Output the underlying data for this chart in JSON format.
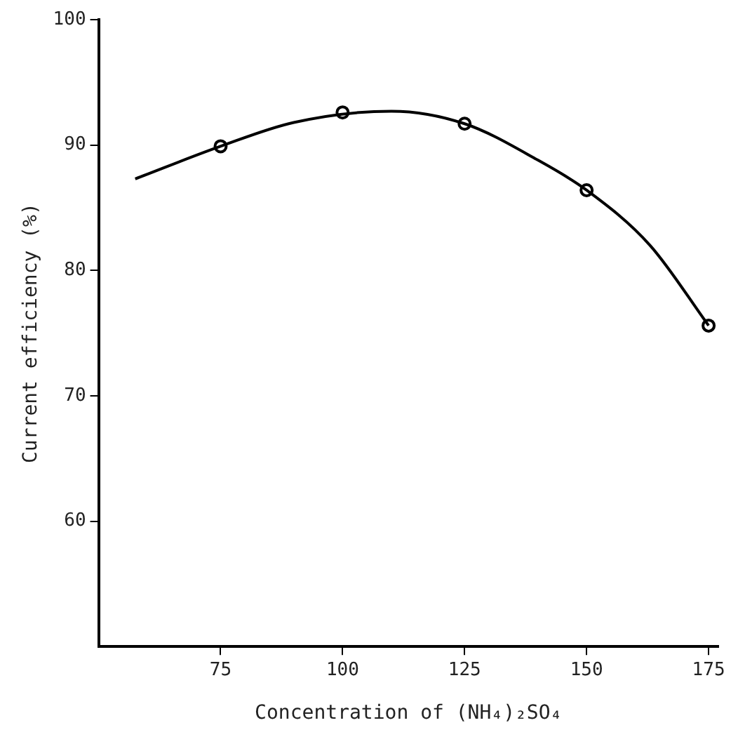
{
  "chart_data": {
    "type": "line",
    "xlabel": "Concentration of (NH₄)₂SO₄",
    "ylabel": "Current efficiency (%)",
    "xlim": [
      50,
      177
    ],
    "xticks": [
      75,
      100,
      125,
      150,
      175
    ],
    "ylim": [
      50,
      100
    ],
    "yticks": [
      60,
      70,
      80,
      90,
      100
    ],
    "grid": false,
    "legend": false,
    "series": [
      {
        "color": "#000000",
        "marker": "none",
        "x": [
          57.5,
          75,
          90,
          110,
          125,
          140,
          150,
          163,
          175
        ],
        "values": [
          87.3,
          89.9,
          91.8,
          92.7,
          91.7,
          88.8,
          86.4,
          82,
          75.6
        ]
      },
      {
        "type": "scatter",
        "color": "#000000",
        "marker": "circle",
        "x": [
          75,
          100,
          125,
          150,
          175
        ],
        "values": [
          89.9,
          92.6,
          91.7,
          86.4,
          75.6
        ]
      }
    ]
  }
}
